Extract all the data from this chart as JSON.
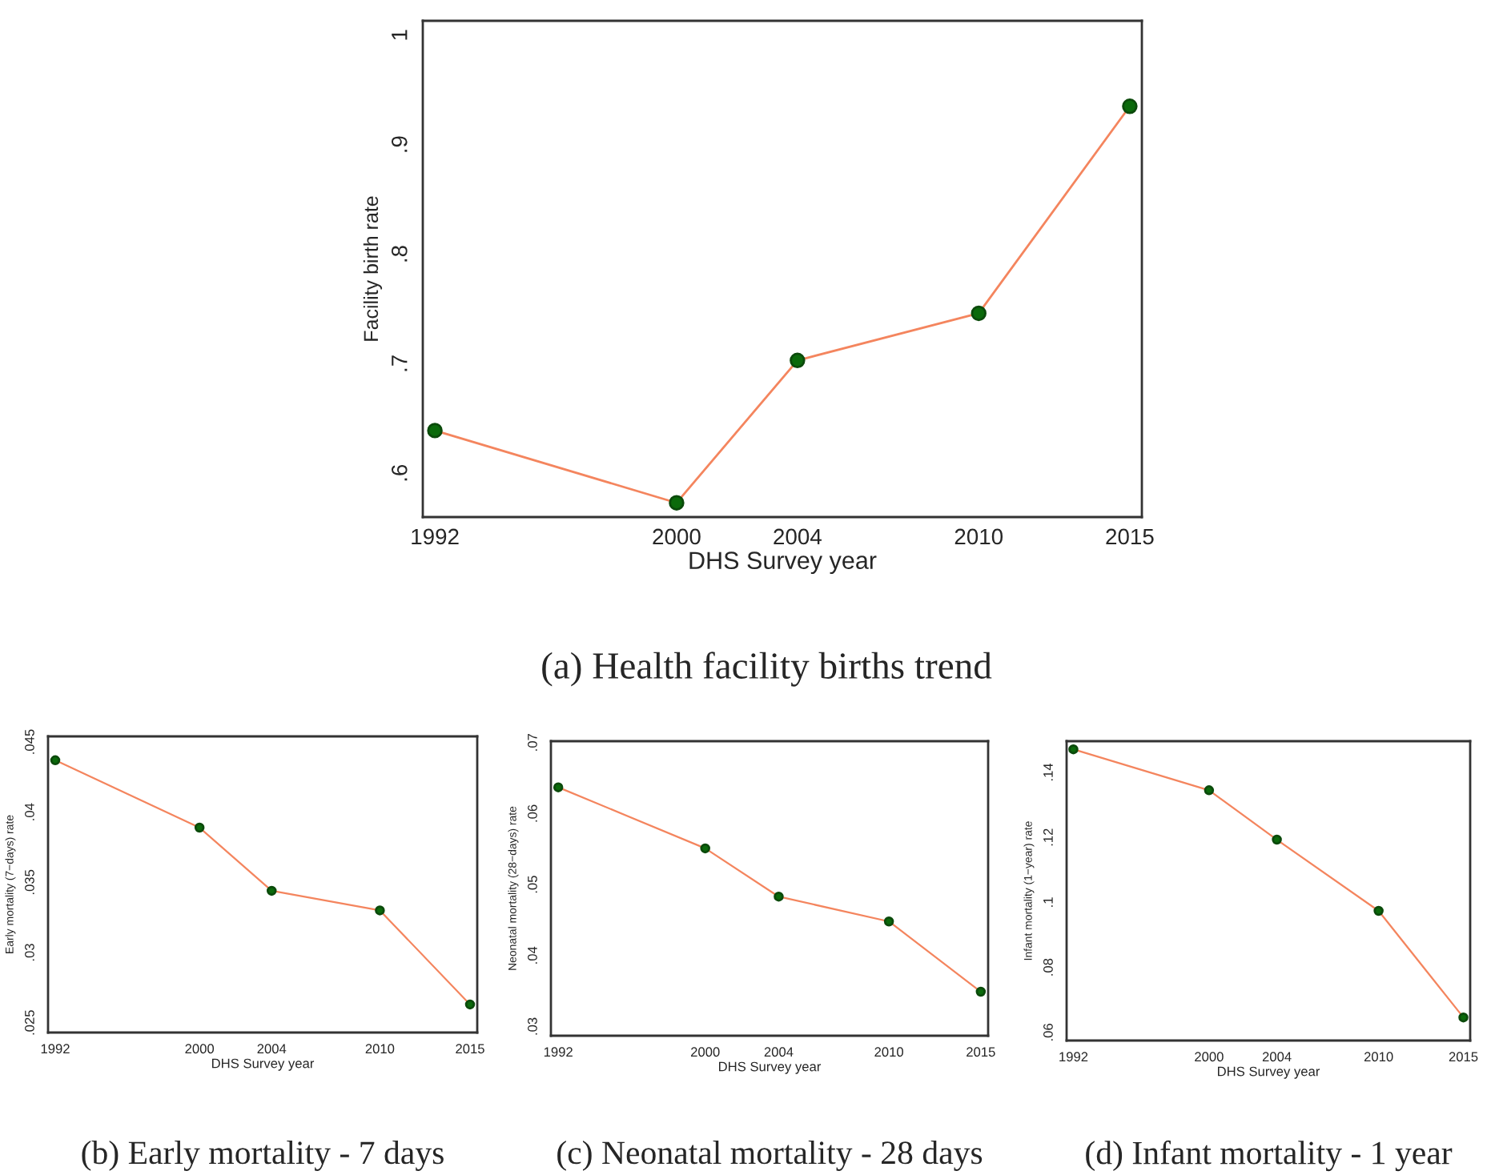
{
  "chart_data": [
    {
      "type": "line",
      "title": "(a) Health facility births trend",
      "xlabel": "DHS Survey year",
      "ylabel": "Facility birth rate",
      "x": [
        1992,
        2000,
        2004,
        2010,
        2015
      ],
      "xlim": [
        1991.6,
        2015.4
      ],
      "xticks": [
        1992,
        2000,
        2004,
        2010,
        2015
      ],
      "ylim": [
        0.56,
        1.013
      ],
      "yticks": [
        {
          "value": 0.6,
          "label": ".6"
        },
        {
          "value": 0.7,
          "label": ".7"
        },
        {
          "value": 0.8,
          "label": ".8"
        },
        {
          "value": 0.9,
          "label": ".9"
        },
        {
          "value": 1,
          "label": "1"
        }
      ],
      "marker": "circle",
      "grid": false,
      "series": [
        {
          "color": "#f4855e",
          "values": [
            0.639,
            0.573,
            0.703,
            0.746,
            0.935
          ]
        }
      ]
    },
    {
      "type": "line",
      "title": "(b) Early mortality - 7 days",
      "xlabel": "DHS Survey year",
      "ylabel": "Early mortality (7−days) rate",
      "x": [
        1992,
        2000,
        2004,
        2010,
        2015
      ],
      "xlim": [
        1991.6,
        2015.4
      ],
      "xticks": [
        1992,
        2000,
        2004,
        2010,
        2015
      ],
      "ylim": [
        0.0243,
        0.0454
      ],
      "yticks": [
        {
          "value": 0.025,
          "label": ".025"
        },
        {
          "value": 0.03,
          "label": ".03"
        },
        {
          "value": 0.035,
          "label": ".035"
        },
        {
          "value": 0.04,
          "label": ".04"
        },
        {
          "value": 0.045,
          "label": ".045"
        }
      ],
      "marker": "circle",
      "grid": false,
      "series": [
        {
          "color": "#f4855e",
          "values": [
            0.0437,
            0.0389,
            0.0344,
            0.033,
            0.0263
          ]
        }
      ]
    },
    {
      "type": "line",
      "title": "(c) Neonatal mortality - 28 days",
      "xlabel": "DHS Survey year",
      "ylabel": "Neonatal mortality (28−days) rate",
      "x": [
        1992,
        2000,
        2004,
        2010,
        2015
      ],
      "xlim": [
        1991.6,
        2015.4
      ],
      "xticks": [
        1992,
        2000,
        2004,
        2010,
        2015
      ],
      "ylim": [
        0.0287,
        0.0702
      ],
      "yticks": [
        {
          "value": 0.03,
          "label": ".03"
        },
        {
          "value": 0.04,
          "label": ".04"
        },
        {
          "value": 0.05,
          "label": ".05"
        },
        {
          "value": 0.06,
          "label": ".06"
        },
        {
          "value": 0.07,
          "label": ".07"
        }
      ],
      "marker": "circle",
      "grid": false,
      "series": [
        {
          "color": "#f4855e",
          "values": [
            0.0637,
            0.0551,
            0.0483,
            0.0448,
            0.0349
          ]
        }
      ]
    },
    {
      "type": "line",
      "title": "(d) Infant mortality - 1 year",
      "xlabel": "DHS Survey year",
      "ylabel": "Infant mortality (1−year) rate",
      "x": [
        1992,
        2000,
        2004,
        2010,
        2015
      ],
      "xlim": [
        1991.6,
        2015.4
      ],
      "xticks": [
        1992,
        2000,
        2004,
        2010,
        2015
      ],
      "ylim": [
        0.0575,
        0.1496
      ],
      "yticks": [
        {
          "value": 0.06,
          "label": ".06"
        },
        {
          "value": 0.08,
          "label": ".08"
        },
        {
          "value": 0.1,
          "label": ".1"
        },
        {
          "value": 0.12,
          "label": ".12"
        },
        {
          "value": 0.14,
          "label": ".14"
        }
      ],
      "marker": "circle",
      "grid": false,
      "series": [
        {
          "color": "#f4855e",
          "values": [
            0.1471,
            0.1345,
            0.1193,
            0.0974,
            0.0646
          ]
        }
      ]
    }
  ]
}
